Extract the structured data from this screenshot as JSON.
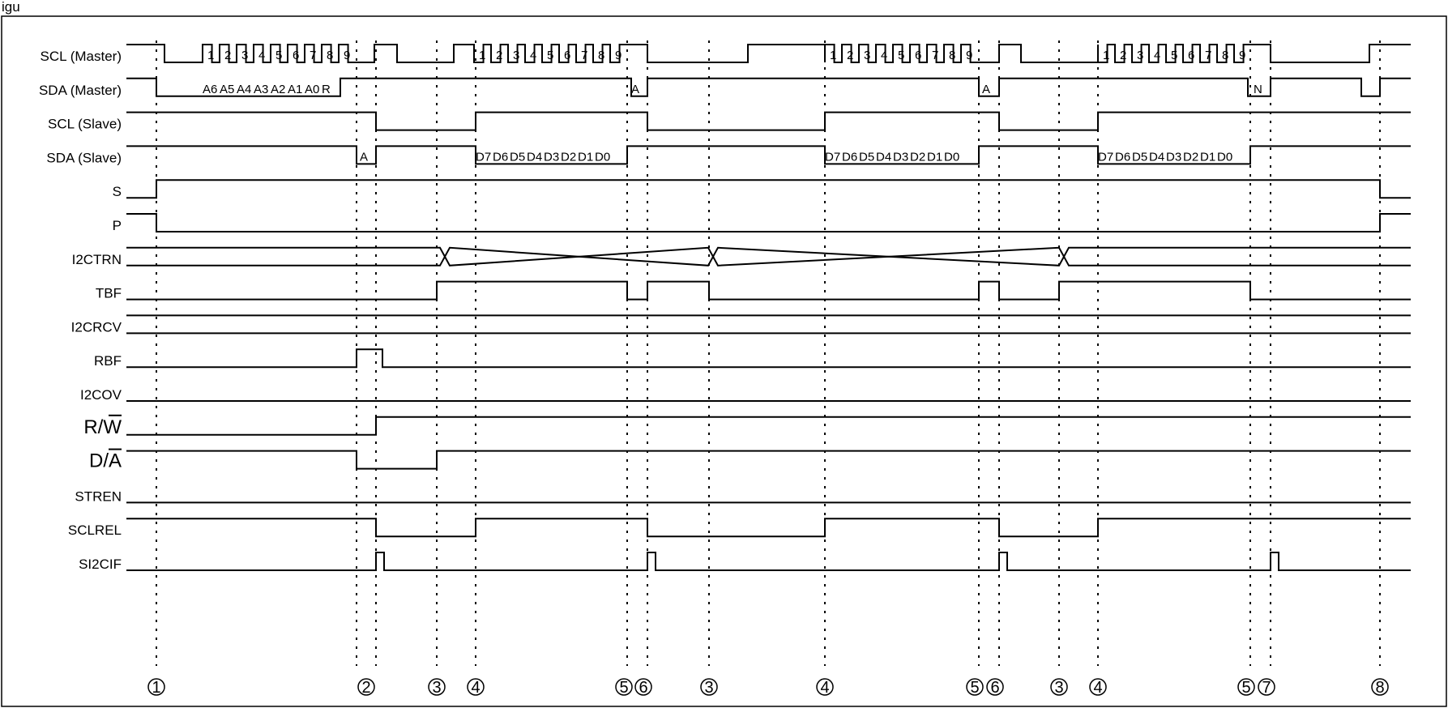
{
  "diagram": {
    "header_fragment": "igu",
    "signals": [
      {
        "name": "scl-master",
        "label": "SCL (Master)",
        "big": false
      },
      {
        "name": "sda-master",
        "label": "SDA (Master)",
        "big": false
      },
      {
        "name": "scl-slave",
        "label": "SCL (Slave)",
        "big": false
      },
      {
        "name": "sda-slave",
        "label": "SDA (Slave)",
        "big": false
      },
      {
        "name": "s",
        "label": "S",
        "big": false
      },
      {
        "name": "p",
        "label": "P",
        "big": false
      },
      {
        "name": "i2ctrn",
        "label": "I2CTRN",
        "big": false
      },
      {
        "name": "tbf",
        "label": "TBF",
        "big": false
      },
      {
        "name": "i2crcv",
        "label": "I2CRCV",
        "big": false
      },
      {
        "name": "rbf",
        "label": "RBF",
        "big": false
      },
      {
        "name": "i2cov",
        "label": "I2COV",
        "big": false
      },
      {
        "name": "r-w",
        "label": "R/W",
        "big": true,
        "overline": "W"
      },
      {
        "name": "d-a",
        "label": "D/A",
        "big": true,
        "overline": "A"
      },
      {
        "name": "stren",
        "label": "STREN",
        "big": false
      },
      {
        "name": "sclrel",
        "label": "SCLREL",
        "big": false
      },
      {
        "name": "si2cif",
        "label": "SI2CIF",
        "big": false
      }
    ],
    "clock_numbers": [
      "1",
      "2",
      "3",
      "4",
      "5",
      "6",
      "7",
      "8",
      "9"
    ],
    "address_bits": [
      "A6",
      "A5",
      "A4",
      "A3",
      "A2",
      "A1",
      "A0",
      "R"
    ],
    "data_bits": [
      "D7",
      "D6",
      "D5",
      "D4",
      "D3",
      "D2",
      "D1",
      "D0"
    ],
    "ack_label": "A",
    "nack_label": "N",
    "markers": [
      "1",
      "2",
      "3",
      "4",
      "5",
      "6",
      "3",
      "4",
      "5",
      "6",
      "3",
      "4",
      "5",
      "7",
      "8"
    ]
  }
}
